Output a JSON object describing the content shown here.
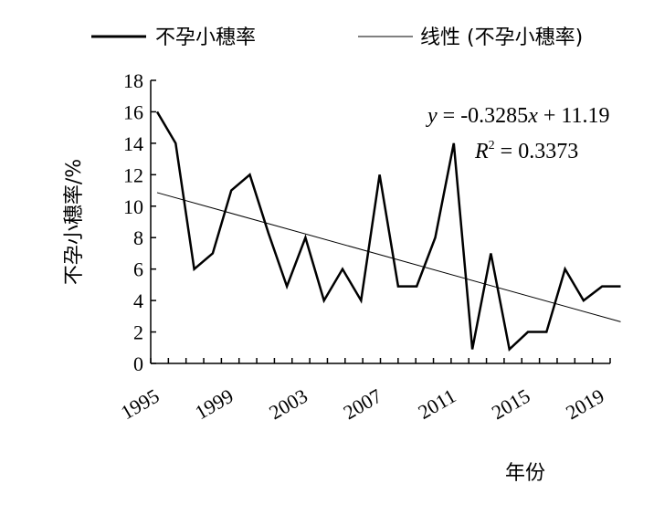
{
  "chart_data": {
    "type": "line",
    "xlabel": "年份",
    "ylabel": "不孕小穗率/%",
    "ylim": [
      0,
      18
    ],
    "yticks": [
      0,
      2,
      4,
      6,
      8,
      10,
      12,
      14,
      16,
      18
    ],
    "xticks": [
      1995,
      1999,
      2003,
      2007,
      2011,
      2015,
      2019
    ],
    "x": [
      1995,
      1996,
      1997,
      1998,
      1999,
      2000,
      2001,
      2002,
      2003,
      2004,
      2005,
      2006,
      2007,
      2008,
      2009,
      2010,
      2011,
      2012,
      2013,
      2014,
      2015,
      2016,
      2017,
      2018,
      2019,
      2020
    ],
    "series": [
      {
        "name": "不孕小穗率",
        "values": [
          16,
          14,
          6,
          7,
          11,
          12,
          8.3,
          4.9,
          8,
          4,
          6,
          4,
          12,
          4.9,
          4.9,
          8,
          14,
          0.9,
          7,
          0.9,
          2,
          2,
          6,
          4,
          4.9,
          4.9
        ]
      }
    ],
    "trendline": {
      "name": "线性 (不孕小穗率)",
      "slope": -0.3285,
      "intercept": 11.19,
      "x_index_start": 1
    },
    "annotations": {
      "equation": "y = -0.3285x + 11.19",
      "r2": "R2 = 0.3373"
    },
    "legend_position": "top",
    "grid": false
  }
}
